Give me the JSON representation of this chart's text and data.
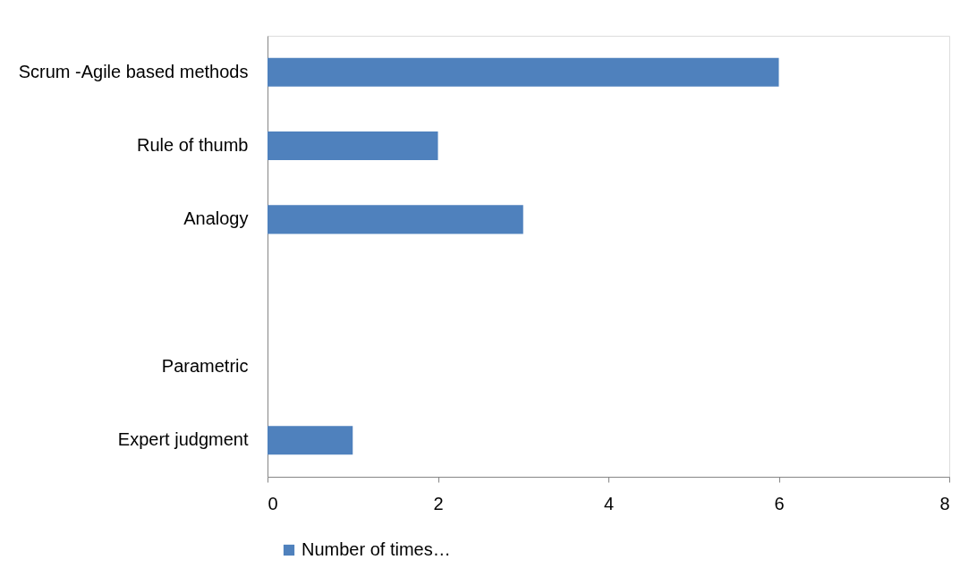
{
  "chart_data": {
    "type": "bar",
    "orientation": "horizontal",
    "categories": [
      "Scrum -Agile based methods",
      "Rule of thumb",
      "Analogy",
      null,
      "Parametric",
      "Expert judgment"
    ],
    "series": [
      {
        "name": "Number of times…",
        "color": "#4f81bd",
        "values": [
          6,
          2,
          3,
          null,
          0,
          1
        ]
      }
    ],
    "xlim": [
      0,
      8
    ],
    "xticks": [
      0,
      2,
      4,
      6,
      8
    ],
    "grid": false,
    "legend": "bottom"
  }
}
